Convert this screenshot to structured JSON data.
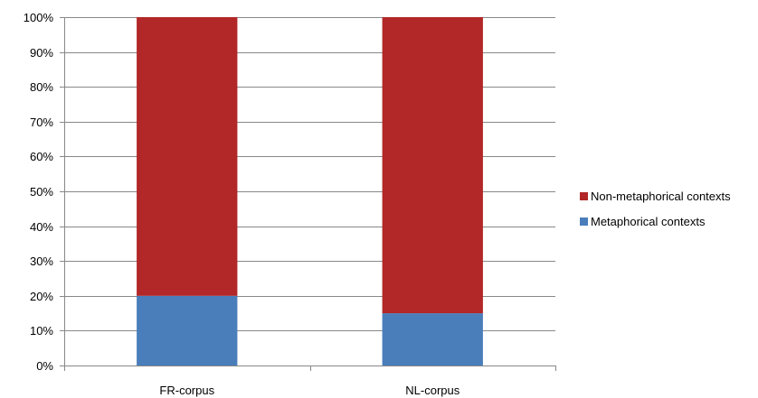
{
  "chart_data": {
    "type": "bar",
    "stacked": true,
    "percent_scale": true,
    "categories": [
      "FR-corpus",
      "NL-corpus"
    ],
    "series": [
      {
        "name": "Metaphorical contexts",
        "color": "#4a7ebb",
        "values": [
          20,
          15
        ]
      },
      {
        "name": "Non-metaphorical contexts",
        "color": "#b22727",
        "values": [
          80,
          85
        ]
      }
    ],
    "ylim": [
      0,
      100
    ],
    "yticks": [
      "0%",
      "10%",
      "20%",
      "30%",
      "40%",
      "50%",
      "60%",
      "70%",
      "80%",
      "90%",
      "100%"
    ],
    "grid": true,
    "legend_position": "right",
    "legend_order": [
      "Non-metaphorical contexts",
      "Metaphorical contexts"
    ],
    "title": "",
    "xlabel": "",
    "ylabel": ""
  }
}
